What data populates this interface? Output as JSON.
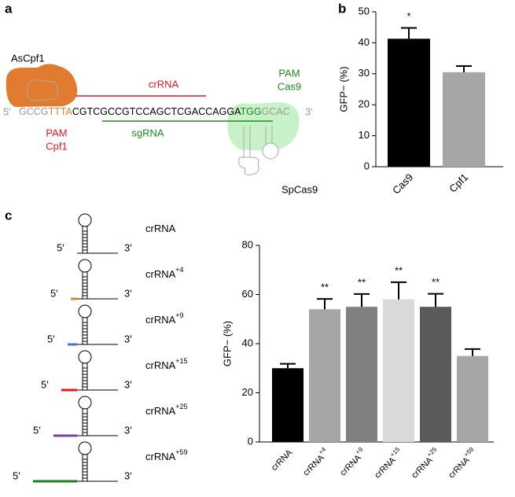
{
  "panel_labels": [
    "a",
    "b",
    "c"
  ],
  "diagram": {
    "ascpf1": "AsCpf1",
    "crrna": "crRNA",
    "pam_cas9": [
      "PAM",
      "Cas9"
    ],
    "pam_cpf1": [
      "PAM",
      "Cpf1"
    ],
    "sgrna": "sgRNA",
    "spcas9": "SpCas9",
    "five_prime": "5′",
    "three_prime": "3′",
    "sequence": [
      {
        "text": "GCCG",
        "color": "#9a9a9a"
      },
      {
        "text": "TTTA",
        "color": "#e8822e"
      },
      {
        "text": "CGTCGCCGTCCAGCTCGACCAGGA",
        "color": "#000000"
      },
      {
        "text": "TGG",
        "color": "#1f8a1f"
      },
      {
        "text": "GCAC",
        "color": "#9a9a9a"
      }
    ]
  },
  "crrna_diagrams": [
    {
      "label": "crRNA",
      "five": "5′",
      "three": "3′"
    },
    {
      "label": "crRNA",
      "superscript": "+4",
      "five": "5′",
      "three": "3′",
      "color": "#e8822e"
    },
    {
      "label": "crRNA",
      "superscript": "+9",
      "five": "5′",
      "three": "3′",
      "color": "#3a78d4"
    },
    {
      "label": "crRNA",
      "superscript": "+15",
      "five": "5′",
      "three": "3′",
      "color": "#e0191f"
    },
    {
      "label": "crRNA",
      "superscript": "+25",
      "five": "5′",
      "three": "3′",
      "color": "#7a3fa0"
    },
    {
      "label": "crRNA",
      "superscript": "+59",
      "five": "5′",
      "three": "3′",
      "color": "#1d7d1d"
    }
  ],
  "chart_data": [
    {
      "type": "bar",
      "ylabel": "GFP− (%)",
      "categories": [
        {
          "text": "Cas9"
        },
        {
          "text": "Cpf1"
        }
      ],
      "values": [
        41.3,
        30.5
      ],
      "errors": [
        3.5,
        2.0
      ],
      "colors": [
        "#000000",
        "#a6a6a6"
      ],
      "significance": [
        "*",
        null
      ],
      "ylim": [
        0,
        50
      ],
      "yticks": [
        0,
        10,
        20,
        30,
        40,
        50
      ]
    },
    {
      "type": "bar",
      "ylabel": "GFP− (%)",
      "categories": [
        {
          "text": "crRNA"
        },
        {
          "text": "crRNA",
          "superscript": "+4"
        },
        {
          "text": "crRNA",
          "superscript": "+9"
        },
        {
          "text": "crRNA",
          "superscript": "+15"
        },
        {
          "text": "crRNA",
          "superscript": "+25"
        },
        {
          "text": "crRNA",
          "superscript": "+59"
        }
      ],
      "values": [
        30,
        54,
        55,
        58,
        55,
        35
      ],
      "errors": [
        1.8,
        4.2,
        5.2,
        7.0,
        5.3,
        2.8
      ],
      "colors": [
        "#000000",
        "#a6a6a6",
        "#808080",
        "#d9d9d9",
        "#5a5a5a",
        "#a6a6a6"
      ],
      "significance": [
        null,
        "**",
        "**",
        "**",
        "**",
        null
      ],
      "ylim": [
        0,
        80
      ],
      "yticks": [
        0,
        20,
        40,
        60,
        80
      ]
    }
  ]
}
